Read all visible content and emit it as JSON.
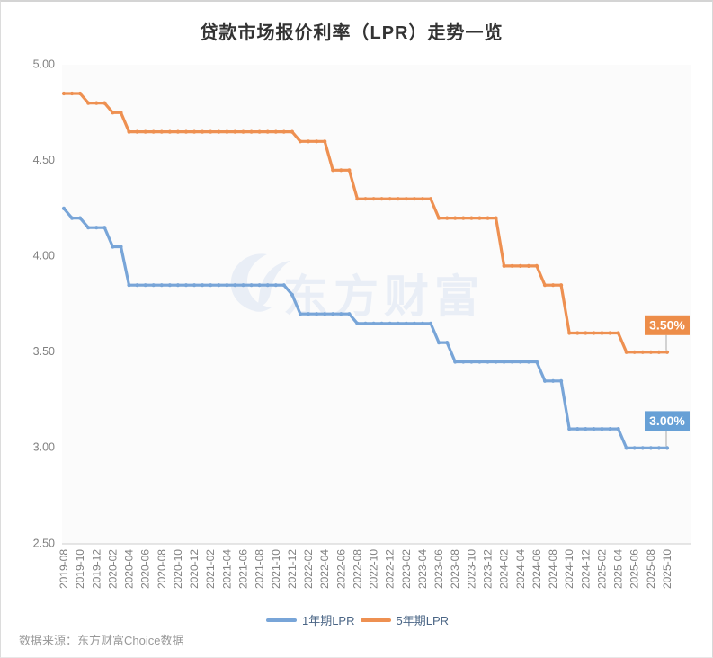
{
  "chart_data": {
    "type": "line",
    "title": "贷款市场报价利率（LPR）走势一览",
    "xlabel": "",
    "ylabel": "",
    "ylim": [
      2.5,
      5.0
    ],
    "grid": false,
    "legend_position": "bottom",
    "x_start": "2019-08",
    "x_end": "2025-10",
    "x_interval_months": 1,
    "y_tick_labels": [
      "5.00",
      "4.50",
      "4.00",
      "3.50",
      "3.00",
      "2.50"
    ],
    "x_tick_labels": [
      "2019-08",
      "2019-10",
      "2019-12",
      "2020-02",
      "2020-04",
      "2020-06",
      "2020-08",
      "2020-10",
      "2020-12",
      "2021-02",
      "2021-04",
      "2021-06",
      "2021-08",
      "2021-10",
      "2021-12",
      "2022-02",
      "2022-04",
      "2022-06",
      "2022-08",
      "2022-10",
      "2022-12",
      "2023-02",
      "2023-04",
      "2023-06",
      "2023-08",
      "2023-10",
      "2023-12",
      "2024-02",
      "2024-04",
      "2024-06",
      "2024-08",
      "2024-10",
      "2024-12",
      "2025-02",
      "2025-04",
      "2025-06",
      "2025-08",
      "2025-10"
    ],
    "watermark": {
      "text": "东方财富",
      "color": "#e9eef6"
    },
    "series": [
      {
        "name": "1年期LPR",
        "color": "#78a5d8",
        "badge_label": "3.00%",
        "badge_color": "#67a0d6",
        "values": [
          4.25,
          4.2,
          4.2,
          4.15,
          4.15,
          4.15,
          4.05,
          4.05,
          3.85,
          3.85,
          3.85,
          3.85,
          3.85,
          3.85,
          3.85,
          3.85,
          3.85,
          3.85,
          3.85,
          3.85,
          3.85,
          3.85,
          3.85,
          3.85,
          3.85,
          3.85,
          3.85,
          3.85,
          3.8,
          3.7,
          3.7,
          3.7,
          3.7,
          3.7,
          3.7,
          3.7,
          3.65,
          3.65,
          3.65,
          3.65,
          3.65,
          3.65,
          3.65,
          3.65,
          3.65,
          3.65,
          3.55,
          3.55,
          3.45,
          3.45,
          3.45,
          3.45,
          3.45,
          3.45,
          3.45,
          3.45,
          3.45,
          3.45,
          3.45,
          3.35,
          3.35,
          3.35,
          3.1,
          3.1,
          3.1,
          3.1,
          3.1,
          3.1,
          3.1,
          3.0,
          3.0,
          3.0,
          3.0,
          3.0,
          3.0
        ]
      },
      {
        "name": "5年期LPR",
        "color": "#ee9051",
        "badge_label": "3.50%",
        "badge_color": "#ed8d49",
        "values": [
          4.85,
          4.85,
          4.85,
          4.8,
          4.8,
          4.8,
          4.75,
          4.75,
          4.65,
          4.65,
          4.65,
          4.65,
          4.65,
          4.65,
          4.65,
          4.65,
          4.65,
          4.65,
          4.65,
          4.65,
          4.65,
          4.65,
          4.65,
          4.65,
          4.65,
          4.65,
          4.65,
          4.65,
          4.65,
          4.6,
          4.6,
          4.6,
          4.6,
          4.45,
          4.45,
          4.45,
          4.3,
          4.3,
          4.3,
          4.3,
          4.3,
          4.3,
          4.3,
          4.3,
          4.3,
          4.3,
          4.2,
          4.2,
          4.2,
          4.2,
          4.2,
          4.2,
          4.2,
          4.2,
          3.95,
          3.95,
          3.95,
          3.95,
          3.95,
          3.85,
          3.85,
          3.85,
          3.6,
          3.6,
          3.6,
          3.6,
          3.6,
          3.6,
          3.6,
          3.5,
          3.5,
          3.5,
          3.5,
          3.5,
          3.5
        ]
      }
    ]
  },
  "source": {
    "text": "数据来源：东方财富Choice数据"
  },
  "colors": {
    "title": "#333333",
    "axis_label": "#808080",
    "axis_line": "#cccccc",
    "plot_bg": "#fbfbfb",
    "frame_border": "#d4d4d4",
    "legend_text": "#4a6585",
    "source_text": "#999999",
    "badge_text": "#ffffff",
    "connector": "#aaaaaa"
  }
}
